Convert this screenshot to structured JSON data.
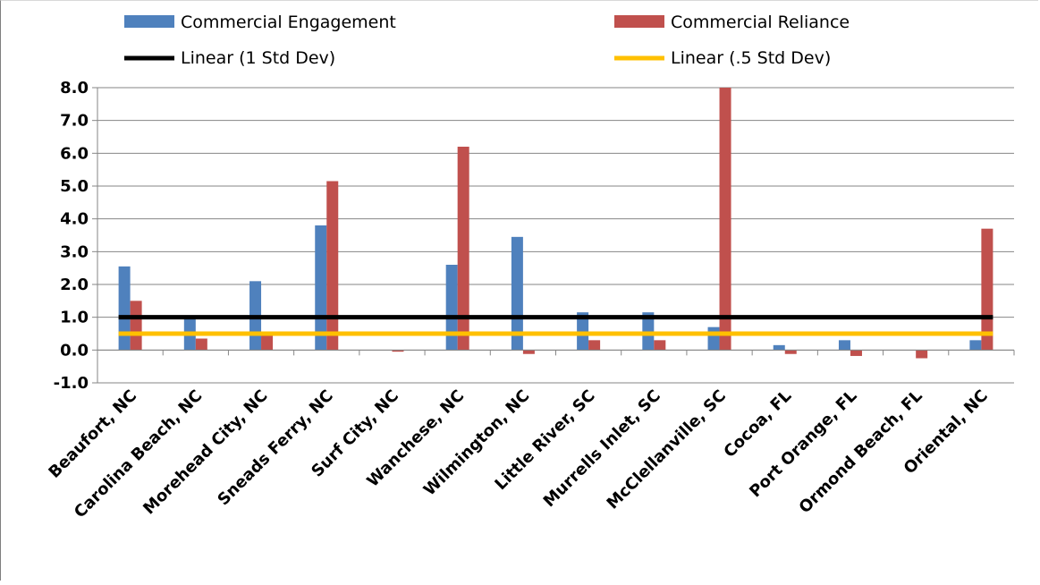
{
  "chart_data": {
    "type": "bar",
    "categories": [
      "Beaufort, NC",
      "Carolina Beach, NC",
      "Morehead City, NC",
      "Sneads Ferry, NC",
      "Surf City, NC",
      "Wanchese, NC",
      "Wilmington, NC",
      "Little River, SC",
      "Murrells Inlet, SC",
      "McClellanville, SC",
      "Cocoa, FL",
      "Port Orange, FL",
      "Ormond Beach, FL",
      "Oriental, NC"
    ],
    "series": [
      {
        "name": "Commercial Engagement",
        "color": "#4f81bd",
        "values": [
          2.55,
          1.0,
          2.1,
          3.8,
          0.0,
          2.6,
          3.45,
          1.15,
          1.15,
          0.7,
          0.15,
          0.3,
          0.0,
          0.3
        ]
      },
      {
        "name": "Commercial Reliance",
        "color": "#c0504d",
        "values": [
          1.5,
          0.35,
          0.5,
          5.15,
          -0.05,
          6.2,
          -0.12,
          0.3,
          0.3,
          8.0,
          -0.12,
          -0.18,
          -0.25,
          3.7
        ]
      }
    ],
    "lines": [
      {
        "name": "Linear (1 Std Dev)",
        "color": "#000000",
        "value": 1.0
      },
      {
        "name": "Linear (.5 Std Dev)",
        "color": "#ffc000",
        "value": 0.5
      }
    ],
    "ylim": [
      -1.0,
      8.0
    ],
    "yticks": [
      "8.0",
      "7.0",
      "6.0",
      "5.0",
      "4.0",
      "3.0",
      "2.0",
      "1.0",
      "0.0",
      "-1.0"
    ],
    "grid": true,
    "legend_position": "top"
  }
}
